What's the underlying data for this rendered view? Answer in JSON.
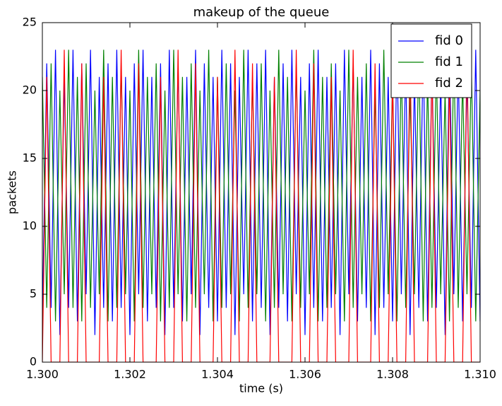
{
  "chart_data": {
    "type": "line",
    "title": "makeup of the queue",
    "x_label": "time (s)",
    "y_label": "packets",
    "xlim": [
      1.3,
      1.31
    ],
    "ylim": [
      0,
      25
    ],
    "xticks": [
      {
        "value": 1.3,
        "label": "1.300"
      },
      {
        "value": 1.302,
        "label": "1.302"
      },
      {
        "value": 1.304,
        "label": "1.304"
      },
      {
        "value": 1.306,
        "label": "1.306"
      },
      {
        "value": 1.308,
        "label": "1.308"
      },
      {
        "value": 1.31,
        "label": "1.310"
      }
    ],
    "yticks": [
      0,
      5,
      10,
      15,
      20,
      25
    ],
    "grid": false,
    "legend": "upper right",
    "x": [
      1.3,
      1.3001,
      1.3002,
      1.3003,
      1.3004,
      1.3005,
      1.3006,
      1.3007,
      1.3008,
      1.3009,
      1.301,
      1.3011,
      1.3012,
      1.3013,
      1.3014,
      1.3015,
      1.3016,
      1.3017,
      1.3018,
      1.3019,
      1.302,
      1.3021,
      1.3022,
      1.3023,
      1.3024,
      1.3025,
      1.3026,
      1.3027,
      1.3028,
      1.3029,
      1.303,
      1.3031,
      1.3032,
      1.3033,
      1.3034,
      1.3035,
      1.3036,
      1.3037,
      1.3038,
      1.3039,
      1.304,
      1.3041,
      1.3042,
      1.3043,
      1.3044,
      1.3045,
      1.3046,
      1.3047,
      1.3048,
      1.3049,
      1.305,
      1.3051,
      1.3052,
      1.3053,
      1.3054,
      1.3055,
      1.3056,
      1.3057,
      1.3058,
      1.3059,
      1.306,
      1.3061,
      1.3062,
      1.3063,
      1.3064,
      1.3065,
      1.3066,
      1.3067,
      1.3068,
      1.3069,
      1.307,
      1.3071,
      1.3072,
      1.3073,
      1.3074,
      1.3075,
      1.3076,
      1.3077,
      1.3078,
      1.3079,
      1.308,
      1.3081,
      1.3082,
      1.3083,
      1.3084,
      1.3085,
      1.3086,
      1.3087,
      1.3088,
      1.3089,
      1.309,
      1.3091,
      1.3092,
      1.3093,
      1.3094,
      1.3095,
      1.3096,
      1.3097,
      1.3098,
      1.3099,
      1.31
    ],
    "series": [
      {
        "name": "fid 0",
        "color": "#0000ff",
        "values": [
          3,
          22,
          4,
          23,
          2,
          21,
          4,
          23,
          3,
          22,
          5,
          23,
          2,
          21,
          4,
          22,
          3,
          23,
          4,
          21,
          2,
          22,
          5,
          23,
          3,
          21,
          4,
          22,
          2,
          23,
          4,
          22,
          3,
          21,
          5,
          23,
          2,
          22,
          4,
          21,
          3,
          23,
          4,
          22,
          2,
          21,
          5,
          23,
          3,
          22,
          4,
          23,
          2,
          21,
          4,
          22,
          3,
          23,
          5,
          21,
          2,
          22,
          4,
          23,
          3,
          21,
          4,
          22,
          2,
          23,
          5,
          22,
          3,
          21,
          4,
          23,
          2,
          22,
          4,
          21,
          3,
          23,
          5,
          22,
          2,
          21,
          4,
          23,
          3,
          22,
          4,
          21,
          2,
          23,
          5,
          22,
          3,
          21,
          4,
          23,
          3
        ]
      },
      {
        "name": "fid 1",
        "color": "#008000",
        "values": [
          21,
          4,
          22,
          3,
          20,
          5,
          23,
          4,
          21,
          3,
          22,
          4,
          20,
          5,
          23,
          3,
          21,
          4,
          22,
          5,
          20,
          3,
          23,
          4,
          21,
          5,
          22,
          3,
          20,
          4,
          23,
          5,
          21,
          3,
          22,
          4,
          20,
          5,
          23,
          3,
          21,
          4,
          22,
          5,
          20,
          3,
          23,
          4,
          21,
          5,
          22,
          3,
          20,
          4,
          23,
          5,
          21,
          3,
          22,
          4,
          20,
          5,
          23,
          3,
          21,
          4,
          22,
          5,
          20,
          3,
          23,
          4,
          21,
          5,
          22,
          3,
          20,
          4,
          23,
          5,
          21,
          3,
          22,
          4,
          20,
          5,
          23,
          3,
          21,
          4,
          22,
          5,
          20,
          3,
          23,
          4,
          21,
          5,
          22,
          3,
          20
        ]
      },
      {
        "name": "fid 2",
        "color": "#ff0000",
        "values": [
          0,
          21,
          0,
          0,
          0,
          23,
          0,
          0,
          0,
          22,
          0,
          0,
          0,
          0,
          21,
          0,
          0,
          0,
          23,
          0,
          0,
          0,
          22,
          0,
          0,
          0,
          0,
          21,
          0,
          0,
          0,
          23,
          0,
          0,
          0,
          22,
          0,
          0,
          0,
          0,
          21,
          0,
          0,
          0,
          23,
          0,
          0,
          0,
          22,
          0,
          0,
          0,
          0,
          21,
          0,
          0,
          0,
          0,
          23,
          0,
          0,
          0,
          22,
          0,
          0,
          0,
          21,
          0,
          0,
          0,
          0,
          23,
          0,
          0,
          0,
          0,
          22,
          0,
          0,
          0,
          21,
          0,
          0,
          0,
          23,
          0,
          0,
          0,
          0,
          22,
          0,
          0,
          0,
          21,
          0,
          0,
          0,
          23,
          0,
          0,
          0
        ]
      }
    ]
  }
}
